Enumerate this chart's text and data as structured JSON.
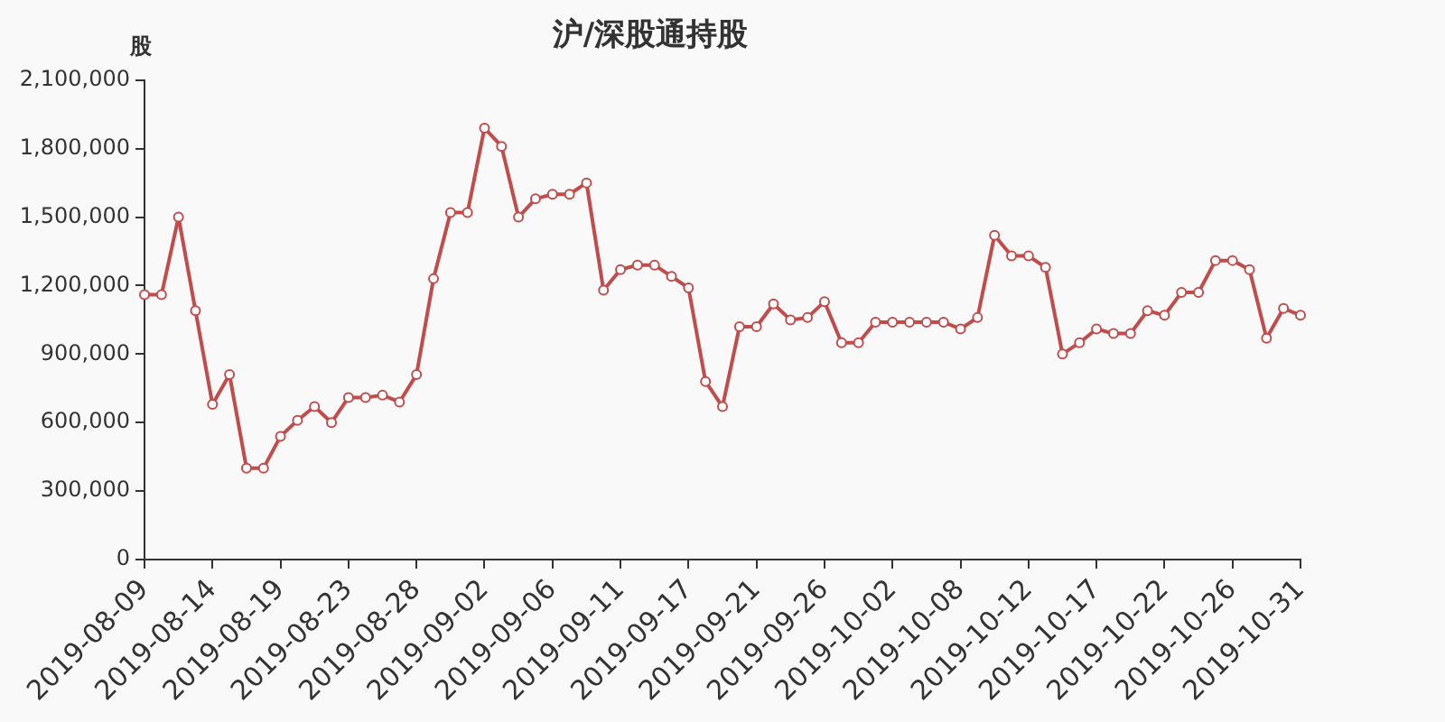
{
  "chart_data": {
    "type": "line",
    "title": "沪/深股通持股",
    "ylabel": "股",
    "categories": [
      "2019-08-09",
      null,
      null,
      null,
      "2019-08-14",
      null,
      null,
      null,
      "2019-08-19",
      null,
      null,
      null,
      "2019-08-23",
      null,
      null,
      null,
      "2019-08-28",
      null,
      null,
      null,
      "2019-09-02",
      null,
      null,
      null,
      "2019-09-06",
      null,
      null,
      null,
      "2019-09-11",
      null,
      null,
      null,
      "2019-09-17",
      null,
      null,
      null,
      "2019-09-21",
      null,
      null,
      null,
      "2019-09-26",
      null,
      null,
      null,
      "2019-10-02",
      null,
      null,
      null,
      "2019-10-08",
      null,
      null,
      null,
      "2019-10-12",
      null,
      null,
      null,
      "2019-10-17",
      null,
      null,
      null,
      "2019-10-22",
      null,
      null,
      null,
      "2019-10-26",
      null,
      null,
      null,
      "2019-10-31"
    ],
    "series": [
      {
        "color": "#c14c4c",
        "values": [
          1160000,
          1160000,
          1500000,
          1090000,
          680000,
          810000,
          400000,
          400000,
          540000,
          610000,
          670000,
          600000,
          710000,
          710000,
          720000,
          690000,
          810000,
          1230000,
          1520000,
          1520000,
          1890000,
          1810000,
          1500000,
          1580000,
          1600000,
          1600000,
          1650000,
          1180000,
          1270000,
          1290000,
          1290000,
          1240000,
          1190000,
          780000,
          670000,
          1020000,
          1020000,
          1120000,
          1050000,
          1060000,
          1130000,
          950000,
          950000,
          1040000,
          1040000,
          1040000,
          1040000,
          1040000,
          1010000,
          1060000,
          1420000,
          1330000,
          1330000,
          1280000,
          900000,
          950000,
          1010000,
          990000,
          990000,
          1090000,
          1070000,
          1170000,
          1170000,
          1310000,
          1310000,
          1270000,
          970000,
          1100000,
          1070000
        ]
      }
    ],
    "ylim": [
      0,
      2100000
    ],
    "yticks": [
      {
        "value": 0,
        "label": "0"
      },
      {
        "value": 300000,
        "label": "300,000"
      },
      {
        "value": 600000,
        "label": "600,000"
      },
      {
        "value": 900000,
        "label": "900,000"
      },
      {
        "value": 1200000,
        "label": "1,200,000"
      },
      {
        "value": 1500000,
        "label": "1,500,000"
      },
      {
        "value": 1800000,
        "label": "1,800,000"
      },
      {
        "value": 2100000,
        "label": "2,100,000"
      }
    ],
    "grid": false,
    "legend": false,
    "marker": "circle",
    "line_style": "solid"
  }
}
